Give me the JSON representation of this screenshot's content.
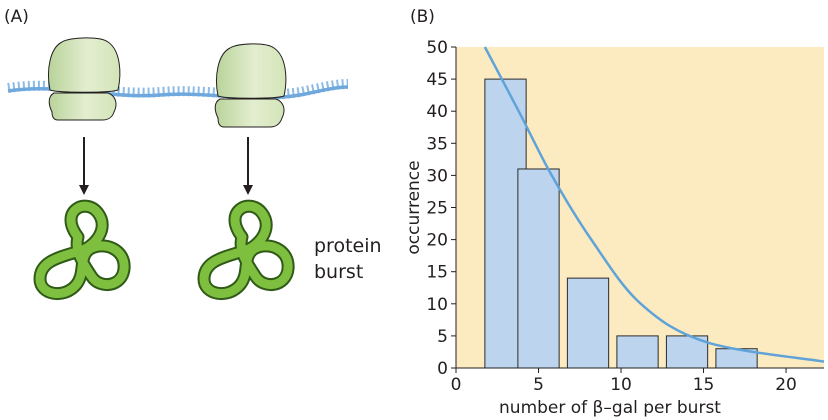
{
  "panel_a": {
    "label": "(A)",
    "caption_line1": "protein",
    "caption_line2": "burst",
    "ribosome_count": 2,
    "colors": {
      "mrna": "#6fa8dc",
      "ribosome": "#cfe0b0",
      "protein": "#7fbf3f",
      "arrow": "#231f20"
    }
  },
  "panel_b": {
    "label": "(B)"
  },
  "chart_data": {
    "type": "bar",
    "title": "",
    "xlabel": "number of β–gal per burst",
    "ylabel": "occurrence",
    "xlim": [
      0,
      22.3
    ],
    "ylim": [
      0,
      50
    ],
    "xticks": [
      0,
      5,
      10,
      15,
      20
    ],
    "yticks": [
      0,
      5,
      10,
      15,
      20,
      25,
      30,
      35,
      40,
      45,
      50
    ],
    "bin_width": 2.5,
    "bars": [
      {
        "x": 3.0,
        "value": 45
      },
      {
        "x": 5.0,
        "value": 31
      },
      {
        "x": 8.0,
        "value": 14
      },
      {
        "x": 11.0,
        "value": 5
      },
      {
        "x": 14.0,
        "value": 5
      },
      {
        "x": 17.0,
        "value": 3
      }
    ],
    "fit_curve": {
      "type": "exponential",
      "points": [
        {
          "x": 1.75,
          "y": 50
        },
        {
          "x": 3.8,
          "y": 40
        },
        {
          "x": 5.8,
          "y": 30
        },
        {
          "x": 8.2,
          "y": 20
        },
        {
          "x": 11.2,
          "y": 10
        },
        {
          "x": 15.2,
          "y": 4
        },
        {
          "x": 22.3,
          "y": 1
        }
      ]
    },
    "grid": false,
    "colors": {
      "plot_background": "#fcebc0",
      "bar_fill": "#bcd4ee",
      "bar_stroke": "#2b2b2b",
      "curve": "#5fa3d9",
      "axis": "#231f20"
    }
  }
}
